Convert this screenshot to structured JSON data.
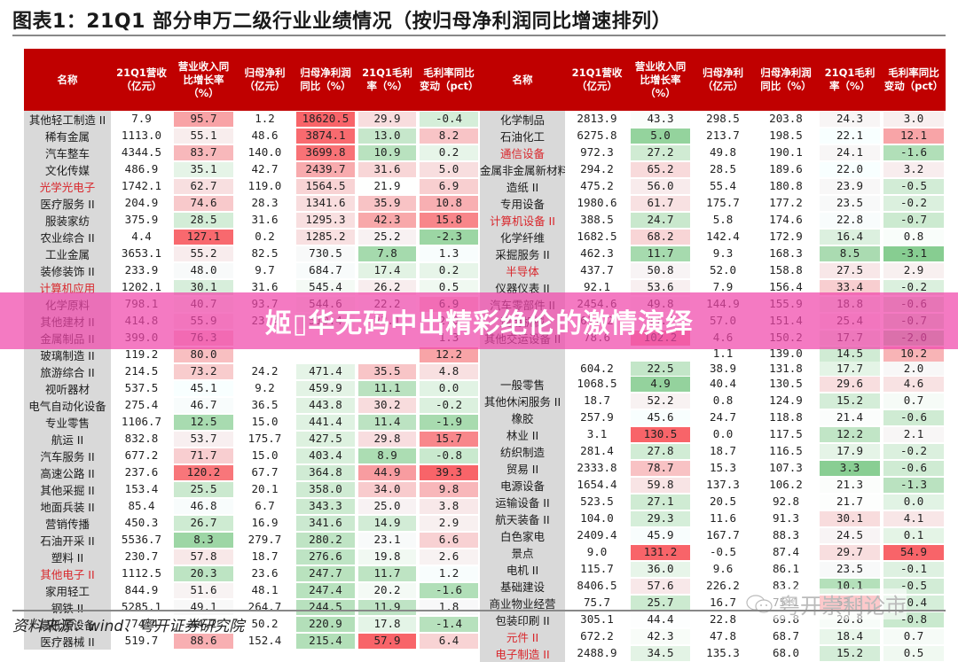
{
  "title": "图表1：21Q1 部分申万二级行业业绩情况（按归母净利润同比增速排列）",
  "headers": [
    "名称",
    "21Q1营收（亿元）",
    "营业收入同比增长率（%）",
    "归母净利（亿元）",
    "归母净利润同比（%）",
    "21Q1毛利率（%）",
    "毛利率同比变动（pct）"
  ],
  "colors": {
    "header_bg": "#c00000",
    "highlight_text": "#d9262b",
    "name_bg": "#d9d9d9",
    "banner": "#f046aa"
  },
  "left_rows": [
    {
      "name": "其他轻工制造 II",
      "hl": false,
      "v": [
        "7.9",
        "95.7",
        "1.2",
        "18620.5",
        "29.9",
        "-0.4"
      ]
    },
    {
      "name": "稀有金属",
      "hl": false,
      "v": [
        "1113.0",
        "55.1",
        "48.6",
        "3874.1",
        "13.0",
        "8.2"
      ]
    },
    {
      "name": "汽车整车",
      "hl": false,
      "v": [
        "4344.5",
        "83.7",
        "140.0",
        "3699.8",
        "10.9",
        "0.2"
      ]
    },
    {
      "name": "文化传媒",
      "hl": false,
      "v": [
        "486.9",
        "35.1",
        "42.7",
        "2439.7",
        "31.6",
        "5.0"
      ]
    },
    {
      "name": "光学光电子",
      "hl": true,
      "v": [
        "1742.1",
        "62.7",
        "119.0",
        "1564.5",
        "21.9",
        "6.9"
      ]
    },
    {
      "name": "医疗服务 II",
      "hl": false,
      "v": [
        "204.9",
        "74.6",
        "28.3",
        "1341.6",
        "35.9",
        "10.8"
      ]
    },
    {
      "name": "服装家纺",
      "hl": false,
      "v": [
        "375.9",
        "28.5",
        "31.6",
        "1295.3",
        "42.3",
        "15.8"
      ]
    },
    {
      "name": "农业综合 II",
      "hl": false,
      "v": [
        "4.4",
        "127.1",
        "0.2",
        "1285.2",
        "25.2",
        "-2.3"
      ]
    },
    {
      "name": "工业金属",
      "hl": false,
      "v": [
        "3653.1",
        "55.2",
        "82.5",
        "730.5",
        "7.8",
        "1.3"
      ]
    },
    {
      "name": "装修装饰 II",
      "hl": false,
      "v": [
        "233.9",
        "48.0",
        "9.7",
        "684.7",
        "17.4",
        "0.2"
      ]
    },
    {
      "name": "计算机应用",
      "hl": true,
      "v": [
        "1202.1",
        "30.1",
        "31.6",
        "545.4",
        "26.2",
        "0.5"
      ]
    },
    {
      "name": "化学原料",
      "hl": false,
      "v": [
        "798.1",
        "40.7",
        "93.7",
        "544.6",
        "22.2",
        "6.9"
      ]
    },
    {
      "name": "其他建材 II",
      "hl": false,
      "v": [
        "414.8",
        "55.9",
        "23.2",
        "510.4",
        "23.1",
        "2.0"
      ]
    },
    {
      "name": "金属制品 II",
      "hl": false,
      "v": [
        "399.0",
        "76.3",
        "",
        "",
        "",
        "1.3"
      ]
    },
    {
      "name": "玻璃制造 II",
      "hl": false,
      "v": [
        "119.2",
        "80.0",
        "",
        "",
        "",
        "12.2"
      ]
    },
    {
      "name": "旅游综合 II",
      "hl": false,
      "v": [
        "214.5",
        "73.2",
        "24.2",
        "471.4",
        "35.5",
        "4.8"
      ]
    },
    {
      "name": "视听器材",
      "hl": false,
      "v": [
        "537.5",
        "45.1",
        "9.2",
        "459.9",
        "11.1",
        "0.0"
      ]
    },
    {
      "name": "电气自动化设备",
      "hl": false,
      "v": [
        "275.4",
        "46.7",
        "36.5",
        "443.8",
        "30.2",
        "-0.2"
      ]
    },
    {
      "name": "专业零售",
      "hl": false,
      "v": [
        "1106.7",
        "12.5",
        "15.0",
        "441.4",
        "11.4",
        "-1.9"
      ]
    },
    {
      "name": "航运 II",
      "hl": false,
      "v": [
        "832.8",
        "53.7",
        "175.7",
        "427.5",
        "29.8",
        "15.7"
      ]
    },
    {
      "name": "汽车服务 II",
      "hl": false,
      "v": [
        "677.2",
        "71.7",
        "15.0",
        "403.4",
        "8.9",
        "-0.8"
      ]
    },
    {
      "name": "高速公路 II",
      "hl": false,
      "v": [
        "237.6",
        "120.2",
        "67.7",
        "364.8",
        "44.9",
        "39.3"
      ]
    },
    {
      "name": "其他采掘 II",
      "hl": false,
      "v": [
        "153.4",
        "25.5",
        "20.1",
        "358.0",
        "34.0",
        "9.8"
      ]
    },
    {
      "name": "地面兵装 II",
      "hl": false,
      "v": [
        "85.4",
        "46.8",
        "6.7",
        "343.3",
        "25.0",
        "3.8"
      ]
    },
    {
      "name": "营销传播",
      "hl": false,
      "v": [
        "450.3",
        "26.7",
        "16.9",
        "341.6",
        "14.9",
        "2.9"
      ]
    },
    {
      "name": "石油开采 II",
      "hl": false,
      "v": [
        "5536.7",
        "8.3",
        "279.7",
        "280.2",
        "23.1",
        "6.6"
      ]
    },
    {
      "name": "塑料 II",
      "hl": false,
      "v": [
        "230.7",
        "57.8",
        "18.7",
        "276.6",
        "19.8",
        "2.6"
      ]
    },
    {
      "name": "其他电子 II",
      "hl": true,
      "v": [
        "1112.5",
        "20.3",
        "23.6",
        "247.7",
        "11.7",
        "1.2"
      ]
    },
    {
      "name": "家用轻工",
      "hl": false,
      "v": [
        "844.9",
        "51.6",
        "48.1",
        "247.4",
        "20.2",
        "-1.6"
      ]
    },
    {
      "name": "钢铁 II",
      "hl": false,
      "v": [
        "5285.1",
        "49.1",
        "264.7",
        "244.5",
        "11.9",
        "1.8"
      ]
    },
    {
      "name": "高低压设备",
      "hl": false,
      "v": [
        "774.4",
        "44.2",
        "50.2",
        "220.9",
        "17.8",
        "-1.4"
      ]
    },
    {
      "name": "医疗器械 II",
      "hl": false,
      "v": [
        "519.7",
        "88.6",
        "152.4",
        "215.4",
        "57.9",
        "6.4"
      ]
    }
  ],
  "right_rows": [
    {
      "name": "化学制品",
      "hl": false,
      "v": [
        "2813.9",
        "43.3",
        "298.5",
        "203.8",
        "24.3",
        "3.0"
      ]
    },
    {
      "name": "石油化工",
      "hl": false,
      "v": [
        "6275.8",
        "5.0",
        "213.7",
        "198.5",
        "22.1",
        "12.1"
      ]
    },
    {
      "name": "通信设备",
      "hl": true,
      "v": [
        "972.3",
        "27.2",
        "49.8",
        "190.1",
        "24.1",
        "-1.6"
      ]
    },
    {
      "name": "金属非金属新材料",
      "hl": false,
      "v": [
        "294.2",
        "65.2",
        "28.5",
        "189.6",
        "22.0",
        "3.2"
      ]
    },
    {
      "name": "造纸 II",
      "hl": false,
      "v": [
        "475.2",
        "56.0",
        "55.4",
        "180.8",
        "23.9",
        "-0.5"
      ]
    },
    {
      "name": "专用设备",
      "hl": false,
      "v": [
        "1980.6",
        "61.7",
        "175.7",
        "177.2",
        "23.5",
        "-0.2"
      ]
    },
    {
      "name": "计算机设备 II",
      "hl": true,
      "v": [
        "388.5",
        "24.7",
        "5.8",
        "174.6",
        "22.8",
        "-0.7"
      ]
    },
    {
      "name": "化学纤维",
      "hl": false,
      "v": [
        "1682.5",
        "68.2",
        "142.4",
        "172.9",
        "16.4",
        "0.8"
      ]
    },
    {
      "name": "采掘服务 II",
      "hl": false,
      "v": [
        "462.3",
        "11.7",
        "9.3",
        "168.3",
        "8.5",
        "-3.1"
      ]
    },
    {
      "name": "半导体",
      "hl": true,
      "v": [
        "437.7",
        "50.8",
        "52.0",
        "158.8",
        "27.5",
        "2.9"
      ]
    },
    {
      "name": "仪器仪表 II",
      "hl": false,
      "v": [
        "92.1",
        "53.6",
        "7.9",
        "156.4",
        "33.4",
        "-0.2"
      ]
    },
    {
      "name": "汽车零部件 II",
      "hl": false,
      "v": [
        "2454.6",
        "49.8",
        "144.9",
        "155.9",
        "18.8",
        "-0.6"
      ]
    },
    {
      "name": "通用机械",
      "hl": false,
      "v": [
        "611.2",
        "49.2",
        "57.0",
        "151.4",
        "25.4",
        "-0.7"
      ]
    },
    {
      "name": "其他交运设备 II",
      "hl": false,
      "v": [
        "78.6",
        "102.2",
        "4.6",
        "150.2",
        "17.7",
        "-2.0"
      ]
    },
    {
      "name": "",
      "hl": false,
      "v": [
        "",
        "",
        "1.1",
        "139.0",
        "14.5",
        "10.2"
      ]
    },
    {
      "name": "",
      "hl": false,
      "v": [
        "604.2",
        "22.5",
        "38.9",
        "131.8",
        "17.7",
        "2.0"
      ]
    },
    {
      "name": "一般零售",
      "hl": false,
      "v": [
        "1068.5",
        "4.9",
        "40.4",
        "130.5",
        "29.6",
        "4.6"
      ]
    },
    {
      "name": "其他休闲服务 II",
      "hl": false,
      "v": [
        "18.7",
        "52.2",
        "0.8",
        "124.9",
        "15.2",
        "0.7"
      ]
    },
    {
      "name": "橡胶",
      "hl": false,
      "v": [
        "257.9",
        "45.6",
        "24.7",
        "118.8",
        "21.4",
        "-0.6"
      ]
    },
    {
      "name": "林业 II",
      "hl": false,
      "v": [
        "3.1",
        "130.5",
        "0.0",
        "117.5",
        "12.2",
        "2.1"
      ]
    },
    {
      "name": "纺织制造",
      "hl": false,
      "v": [
        "281.4",
        "27.8",
        "18.7",
        "116.5",
        "17.9",
        "-0.2"
      ]
    },
    {
      "name": "贸易 II",
      "hl": false,
      "v": [
        "2333.8",
        "78.7",
        "15.3",
        "107.3",
        "3.3",
        "-0.6"
      ]
    },
    {
      "name": "电源设备",
      "hl": false,
      "v": [
        "1654.4",
        "59.8",
        "137.3",
        "106.2",
        "21.3",
        "-1.3"
      ]
    },
    {
      "name": "运输设备 II",
      "hl": false,
      "v": [
        "523.5",
        "27.1",
        "20.5",
        "92.8",
        "21.7",
        "0.0"
      ]
    },
    {
      "name": "航天装备 II",
      "hl": false,
      "v": [
        "104.0",
        "29.3",
        "11.6",
        "91.3",
        "30.1",
        "4.1"
      ]
    },
    {
      "name": "白色家电",
      "hl": false,
      "v": [
        "2409.4",
        "45.9",
        "167.7",
        "88.3",
        "24.5",
        "0.1"
      ]
    },
    {
      "name": "景点",
      "hl": false,
      "v": [
        "9.0",
        "131.2",
        "-0.5",
        "87.4",
        "29.7",
        "54.9"
      ]
    },
    {
      "name": "电机 II",
      "hl": false,
      "v": [
        "115.7",
        "36.0",
        "9.6",
        "86.1",
        "23.5",
        "-0.1"
      ]
    },
    {
      "name": "基础建设",
      "hl": false,
      "v": [
        "8406.5",
        "57.6",
        "226.2",
        "83.2",
        "10.1",
        "-0.5"
      ]
    },
    {
      "name": "商业物业经营",
      "hl": false,
      "v": [
        "75.7",
        "25.7",
        "16.7",
        "75.1",
        "53.3",
        "-0.4"
      ]
    },
    {
      "name": "包装印刷 II",
      "hl": false,
      "v": [
        "305.1",
        "44.4",
        "22.8",
        "69.8",
        "20.8",
        "-0.8"
      ]
    },
    {
      "name": "元件 II",
      "hl": true,
      "v": [
        "672.2",
        "42.3",
        "47.8",
        "68.7",
        "18.4",
        "0.7"
      ]
    },
    {
      "name": "电子制造 II",
      "hl": true,
      "v": [
        "2488.9",
        "34.5",
        "135.3",
        "68.0",
        "15.2",
        "0.5"
      ]
    }
  ],
  "banner_text": "姬▯华无码中出精彩绝伦的激情演绎",
  "source": "资料来源：wind、粤开证券研究院",
  "watermark": "粤开崇利论市"
}
